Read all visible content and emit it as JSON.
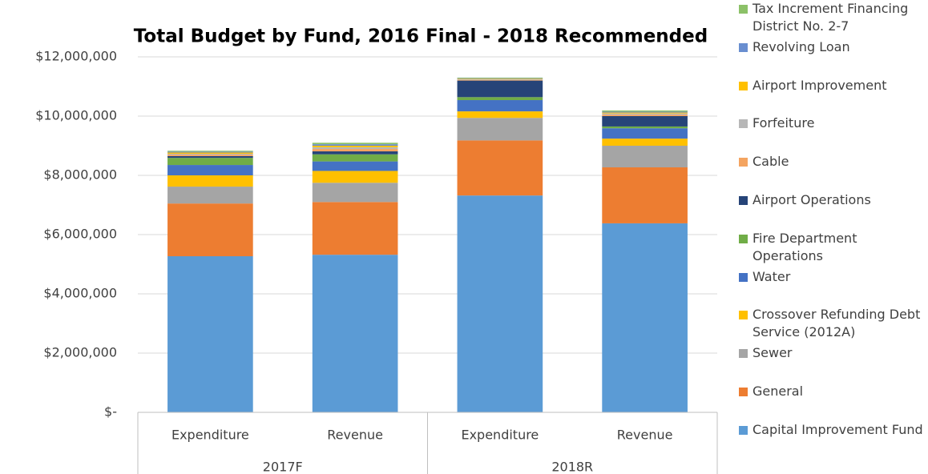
{
  "chart_data": {
    "type": "stacked_bar",
    "title": "Total Budget by Fund, 2016 Final - 2018 Recommended",
    "groups": [
      {
        "name": "2017F",
        "categories": [
          "Expenditure",
          "Revenue"
        ]
      },
      {
        "name": "2018R",
        "categories": [
          "Expenditure",
          "Revenue"
        ]
      }
    ],
    "ylim": [
      0,
      12000000
    ],
    "yticks": [
      {
        "value": 0,
        "label": "$-"
      },
      {
        "value": 2000000,
        "label": "$2,000,000"
      },
      {
        "value": 4000000,
        "label": "$4,000,000"
      },
      {
        "value": 6000000,
        "label": "$6,000,000"
      },
      {
        "value": 8000000,
        "label": "$8,000,000"
      },
      {
        "value": 10000000,
        "label": "$10,000,000"
      },
      {
        "value": 12000000,
        "label": "$12,000,000"
      }
    ],
    "grid": true,
    "legend": "right",
    "series": [
      {
        "name": "Capital Improvement Fund",
        "color": "#5b9bd5",
        "values": [
          5270000,
          5320000,
          7320000,
          6380000
        ]
      },
      {
        "name": "General",
        "color": "#ed7d31",
        "values": [
          1780000,
          1780000,
          1860000,
          1890000
        ]
      },
      {
        "name": "Sewer",
        "color": "#a5a5a5",
        "values": [
          570000,
          650000,
          760000,
          730000
        ]
      },
      {
        "name": "Crossover Refunding Debt Service (2012A)",
        "color": "#ffc000",
        "values": [
          380000,
          400000,
          220000,
          240000
        ]
      },
      {
        "name": "Water",
        "color": "#4472c4",
        "values": [
          350000,
          320000,
          380000,
          350000
        ]
      },
      {
        "name": "Fire Department Operations",
        "color": "#70ad47",
        "values": [
          240000,
          240000,
          100000,
          60000
        ]
      },
      {
        "name": "Airport Operations",
        "color": "#264478",
        "values": [
          60000,
          100000,
          560000,
          350000
        ]
      },
      {
        "name": "Cable",
        "color": "#f4a460",
        "values": [
          50000,
          80000,
          20000,
          50000
        ]
      },
      {
        "name": "Forfeiture",
        "color": "#b7b7b7",
        "values": [
          30000,
          60000,
          20000,
          40000
        ]
      },
      {
        "name": "Airport Improvement",
        "color": "#ffc000",
        "values": [
          40000,
          50000,
          20000,
          30000
        ]
      },
      {
        "name": "Revolving Loan",
        "color": "#698ed0",
        "values": [
          30000,
          50000,
          20000,
          30000
        ]
      },
      {
        "name": "Tax Increment Financing District No. 2-7",
        "color": "#8cc168",
        "values": [
          30000,
          50000,
          20000,
          40000
        ]
      }
    ]
  }
}
